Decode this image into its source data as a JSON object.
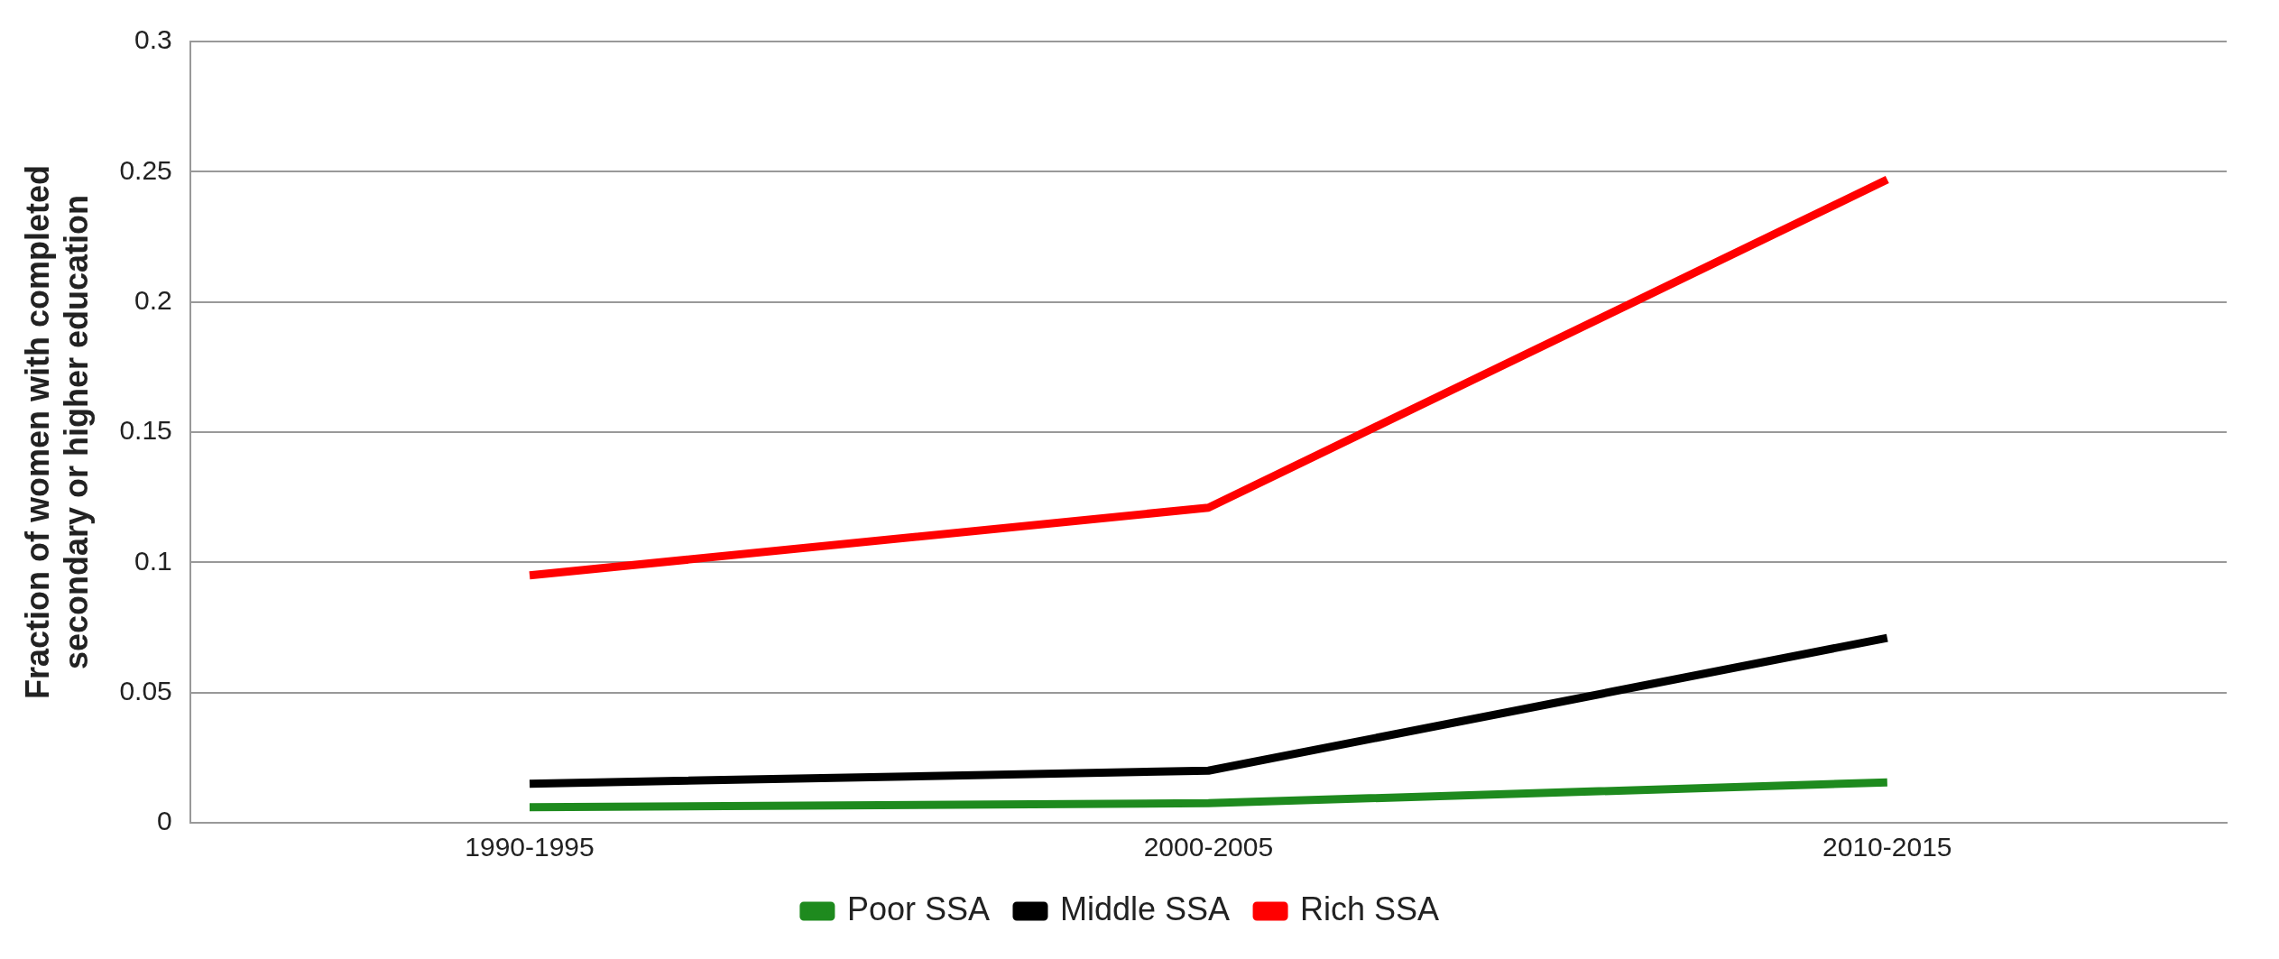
{
  "chart_data": {
    "type": "line",
    "ylabel": "Fraction of women with completed secondary or higher education",
    "categories": [
      "1990-1995",
      "2000-2005",
      "2010-2015"
    ],
    "series": [
      {
        "name": "Poor SSA",
        "color": "#1e8a1e",
        "values": [
          0.006,
          0.0075,
          0.0155
        ]
      },
      {
        "name": "Middle SSA",
        "color": "#000000",
        "values": [
          0.015,
          0.02,
          0.071
        ]
      },
      {
        "name": "Rich SSA",
        "color": "#ff0000",
        "values": [
          0.095,
          0.121,
          0.247
        ]
      }
    ],
    "ylim": [
      0,
      0.3
    ],
    "yticks": [
      0,
      0.05,
      0.1,
      0.15,
      0.2,
      0.25,
      0.3
    ],
    "grid": "y",
    "legend": "bottom",
    "marker": "none",
    "line_style": "solid"
  }
}
